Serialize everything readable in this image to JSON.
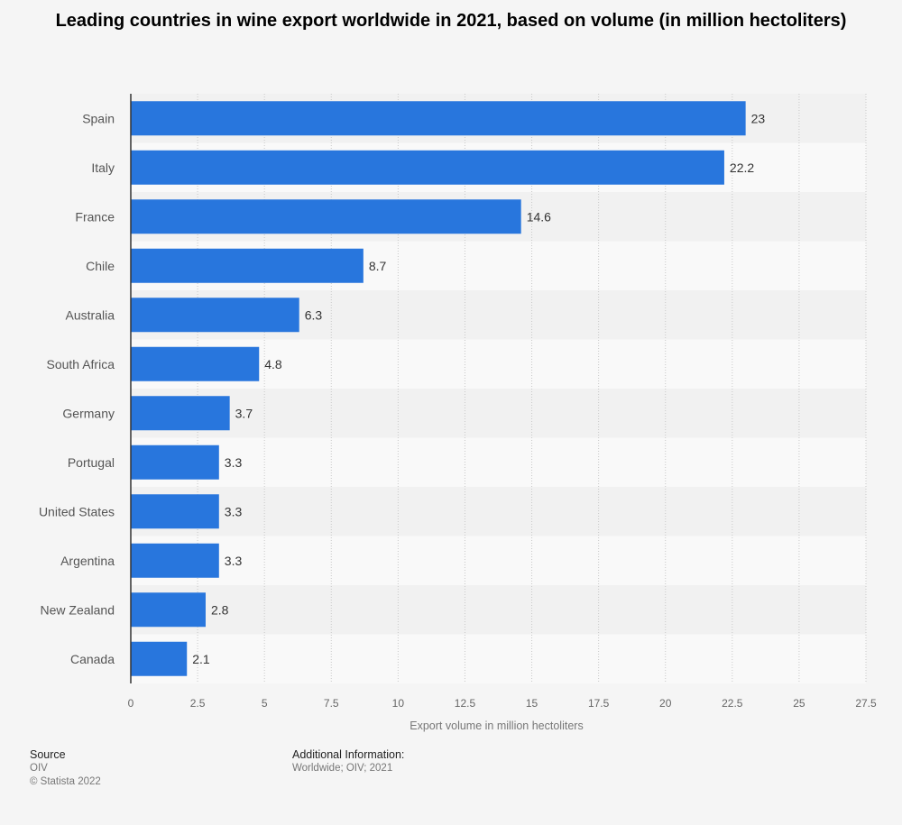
{
  "chart_data": {
    "type": "bar",
    "orientation": "horizontal",
    "title": "Leading countries in wine export worldwide in 2021, based on volume (in million hectoliters)",
    "categories": [
      "Spain",
      "Italy",
      "France",
      "Chile",
      "Australia",
      "South Africa",
      "Germany",
      "Portugal",
      "United States",
      "Argentina",
      "New Zealand",
      "Canada"
    ],
    "values": [
      23,
      22.2,
      14.6,
      8.7,
      6.3,
      4.8,
      3.7,
      3.3,
      3.3,
      3.3,
      2.8,
      2.1
    ],
    "value_labels": [
      "23",
      "22.2",
      "14.6",
      "8.7",
      "6.3",
      "4.8",
      "3.7",
      "3.3",
      "3.3",
      "3.3",
      "2.8",
      "2.1"
    ],
    "xlabel": "Export volume in million hectoliters",
    "ylabel": "",
    "xlim": [
      0,
      27.5
    ],
    "ticks": [
      0,
      2.5,
      5,
      7.5,
      10,
      12.5,
      15,
      17.5,
      20,
      22.5,
      25,
      27.5
    ],
    "tick_labels": [
      "0",
      "2.5",
      "5",
      "7.5",
      "10",
      "12.5",
      "15",
      "17.5",
      "20",
      "22.5",
      "25",
      "27.5"
    ],
    "grid": true,
    "bar_color": "#2876dd"
  },
  "footer": {
    "source_label": "Source",
    "source_value": "OIV",
    "copyright": "© Statista 2022",
    "additional_label": "Additional Information:",
    "additional_value": "Worldwide; OIV; 2021"
  }
}
